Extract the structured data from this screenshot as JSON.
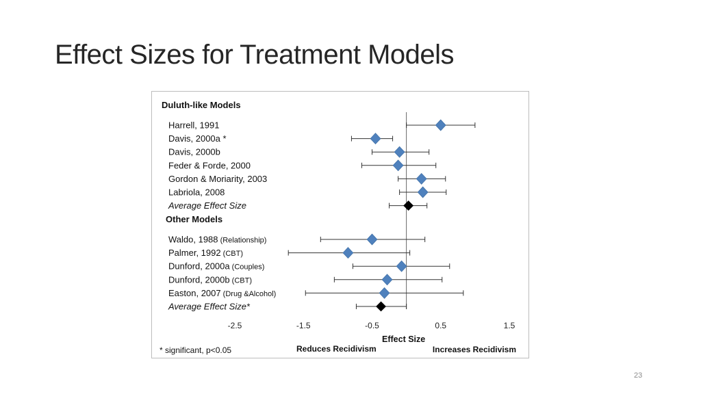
{
  "slide": {
    "title": "Effect Sizes for Treatment Models",
    "page_number": "23"
  },
  "colors": {
    "marker": "#4f81bd",
    "average_marker": "#000000",
    "error_bar": "#333333",
    "zero_line": "#666666"
  },
  "chart_data": {
    "type": "scatter",
    "subtype": "forest-plot",
    "xlabel": "Effect Size",
    "xlim": [
      -2.5,
      1.5
    ],
    "xticks": [
      "-2.5",
      "-1.5",
      "-0.5",
      "0.5",
      "1.5"
    ],
    "reference_line_x": 0,
    "grid": false,
    "legend": "none",
    "groups": [
      {
        "title": "Duluth-like Models",
        "rows": [
          {
            "label": "Harrell, 1991",
            "note": "",
            "effect": 0.5,
            "ci": [
              0.0,
              1.0
            ],
            "average": false
          },
          {
            "label": "Davis, 2000a *",
            "note": "",
            "effect": -0.45,
            "ci": [
              -0.8,
              -0.2
            ],
            "average": false
          },
          {
            "label": "Davis, 2000b",
            "note": "",
            "effect": -0.1,
            "ci": [
              -0.5,
              0.33
            ],
            "average": false
          },
          {
            "label": "Feder & Forde, 2000",
            "note": "",
            "effect": -0.12,
            "ci": [
              -0.65,
              0.43
            ],
            "average": false
          },
          {
            "label": "Gordon & Moriarity, 2003",
            "note": "",
            "effect": 0.22,
            "ci": [
              -0.12,
              0.57
            ],
            "average": false
          },
          {
            "label": "Labriola, 2008",
            "note": "",
            "effect": 0.24,
            "ci": [
              -0.1,
              0.58
            ],
            "average": false
          },
          {
            "label": "Average Effect Size",
            "note": "",
            "effect": 0.03,
            "ci": [
              -0.25,
              0.3
            ],
            "average": true
          }
        ]
      },
      {
        "title": "Other Models",
        "rows": [
          {
            "label": "Waldo, 1988",
            "note": "(Relationship)",
            "effect": -0.5,
            "ci": [
              -1.25,
              0.27
            ],
            "average": false
          },
          {
            "label": "Palmer, 1992",
            "note": "(CBT)",
            "effect": -0.85,
            "ci": [
              -1.72,
              0.05
            ],
            "average": false
          },
          {
            "label": "Dunford, 2000a",
            "note": "(Couples)",
            "effect": -0.07,
            "ci": [
              -0.78,
              0.63
            ],
            "average": false
          },
          {
            "label": "Dunford, 2000b",
            "note": "(CBT)",
            "effect": -0.28,
            "ci": [
              -1.05,
              0.52
            ],
            "average": false
          },
          {
            "label": "Easton, 2007",
            "note": "(Drug &Alcohol)",
            "effect": -0.32,
            "ci": [
              -1.47,
              0.83
            ],
            "average": false
          },
          {
            "label": "Average Effect Size*",
            "note": "",
            "effect": -0.37,
            "ci": [
              -0.73,
              0.0
            ],
            "average": true
          }
        ]
      }
    ],
    "footnote": "* significant, p<0.05",
    "left_annotation": "Reduces Recidivism",
    "right_annotation": "Increases Recidivism"
  }
}
